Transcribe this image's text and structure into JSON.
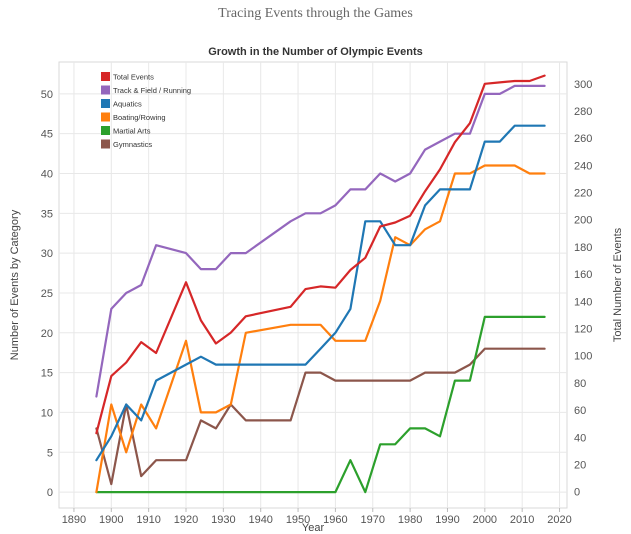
{
  "page_title": "Tracing Events through the Games",
  "chart_data": {
    "type": "line",
    "title": "Growth in the Number of Olympic Events",
    "xlabel": "Year",
    "ylabel_left": "Number of Events by Category",
    "ylabel_right": "Total Number of Events",
    "xlim": [
      1886,
      2022
    ],
    "xticks": [
      1890,
      1900,
      1910,
      1920,
      1930,
      1940,
      1950,
      1960,
      1970,
      1980,
      1990,
      2000,
      2010,
      2020
    ],
    "ylim_left": [
      -2,
      54
    ],
    "yticks_left": [
      0,
      5,
      10,
      15,
      20,
      25,
      30,
      35,
      40,
      45,
      50
    ],
    "ylim_right": [
      -12,
      316
    ],
    "yticks_right": [
      0,
      20,
      40,
      60,
      80,
      100,
      120,
      140,
      160,
      180,
      200,
      220,
      240,
      260,
      280,
      300
    ],
    "grid": true,
    "legend_position": "top-left",
    "series": [
      {
        "name": "Total Events",
        "color": "#d62728",
        "axis": "right",
        "x": [
          1896,
          1900,
          1904,
          1908,
          1912,
          1920,
          1924,
          1928,
          1932,
          1936,
          1948,
          1952,
          1956,
          1960,
          1964,
          1968,
          1972,
          1976,
          1980,
          1984,
          1988,
          1992,
          1996,
          2000,
          2004,
          2008,
          2012,
          2016
        ],
        "values": [
          43,
          85,
          95,
          110,
          102,
          154,
          126,
          109,
          117,
          129,
          136,
          149,
          151,
          150,
          163,
          172,
          195,
          198,
          203,
          221,
          237,
          257,
          271,
          300,
          301,
          302,
          302,
          306
        ]
      },
      {
        "name": "Track & Field / Running",
        "color": "#9467bd",
        "axis": "left",
        "x": [
          1896,
          1900,
          1904,
          1908,
          1912,
          1920,
          1924,
          1928,
          1932,
          1936,
          1948,
          1952,
          1956,
          1960,
          1964,
          1968,
          1972,
          1976,
          1980,
          1984,
          1988,
          1992,
          1996,
          2000,
          2004,
          2008,
          2012,
          2016
        ],
        "values": [
          12,
          23,
          25,
          26,
          31,
          30,
          28,
          28,
          30,
          30,
          34,
          35,
          35,
          36,
          38,
          38,
          40,
          39,
          40,
          43,
          44,
          45,
          45,
          50,
          50,
          51,
          51,
          51
        ]
      },
      {
        "name": "Aquatics",
        "color": "#1f77b4",
        "axis": "left",
        "x": [
          1896,
          1900,
          1904,
          1908,
          1912,
          1920,
          1924,
          1928,
          1932,
          1936,
          1948,
          1952,
          1956,
          1960,
          1964,
          1968,
          1972,
          1976,
          1980,
          1984,
          1988,
          1992,
          1996,
          2000,
          2004,
          2008,
          2012,
          2016
        ],
        "values": [
          4,
          7,
          11,
          9,
          14,
          16,
          17,
          16,
          16,
          16,
          16,
          16,
          18,
          20,
          23,
          34,
          34,
          31,
          31,
          36,
          38,
          38,
          38,
          44,
          44,
          46,
          46,
          46
        ]
      },
      {
        "name": "Boating/Rowing",
        "color": "#ff7f0e",
        "axis": "left",
        "x": [
          1896,
          1900,
          1904,
          1908,
          1912,
          1920,
          1924,
          1928,
          1932,
          1936,
          1948,
          1952,
          1956,
          1960,
          1964,
          1968,
          1972,
          1976,
          1980,
          1984,
          1988,
          1992,
          1996,
          2000,
          2004,
          2008,
          2012,
          2016
        ],
        "values": [
          0,
          11,
          5,
          11,
          8,
          19,
          10,
          10,
          11,
          20,
          21,
          21,
          21,
          19,
          19,
          19,
          24,
          32,
          31,
          33,
          34,
          40,
          40,
          41,
          41,
          41,
          40,
          40
        ]
      },
      {
        "name": "Martial Arts",
        "color": "#2ca02c",
        "axis": "left",
        "x": [
          1896,
          1900,
          1904,
          1908,
          1912,
          1920,
          1924,
          1928,
          1932,
          1936,
          1948,
          1952,
          1956,
          1960,
          1964,
          1968,
          1972,
          1976,
          1980,
          1984,
          1988,
          1992,
          1996,
          2000,
          2004,
          2008,
          2012,
          2016
        ],
        "values": [
          0,
          0,
          0,
          0,
          0,
          0,
          0,
          0,
          0,
          0,
          0,
          0,
          0,
          0,
          4,
          0,
          6,
          6,
          8,
          8,
          7,
          14,
          14,
          22,
          22,
          22,
          22,
          22
        ]
      },
      {
        "name": "Gymnastics",
        "color": "#8c564b",
        "axis": "left",
        "x": [
          1896,
          1900,
          1904,
          1908,
          1912,
          1920,
          1924,
          1928,
          1932,
          1936,
          1948,
          1952,
          1956,
          1960,
          1964,
          1968,
          1972,
          1976,
          1980,
          1984,
          1988,
          1992,
          1996,
          2000,
          2004,
          2008,
          2012,
          2016
        ],
        "values": [
          8,
          1,
          11,
          2,
          4,
          4,
          9,
          8,
          11,
          9,
          9,
          15,
          15,
          14,
          14,
          14,
          14,
          14,
          14,
          15,
          15,
          15,
          16,
          18,
          18,
          18,
          18,
          18
        ]
      }
    ]
  }
}
